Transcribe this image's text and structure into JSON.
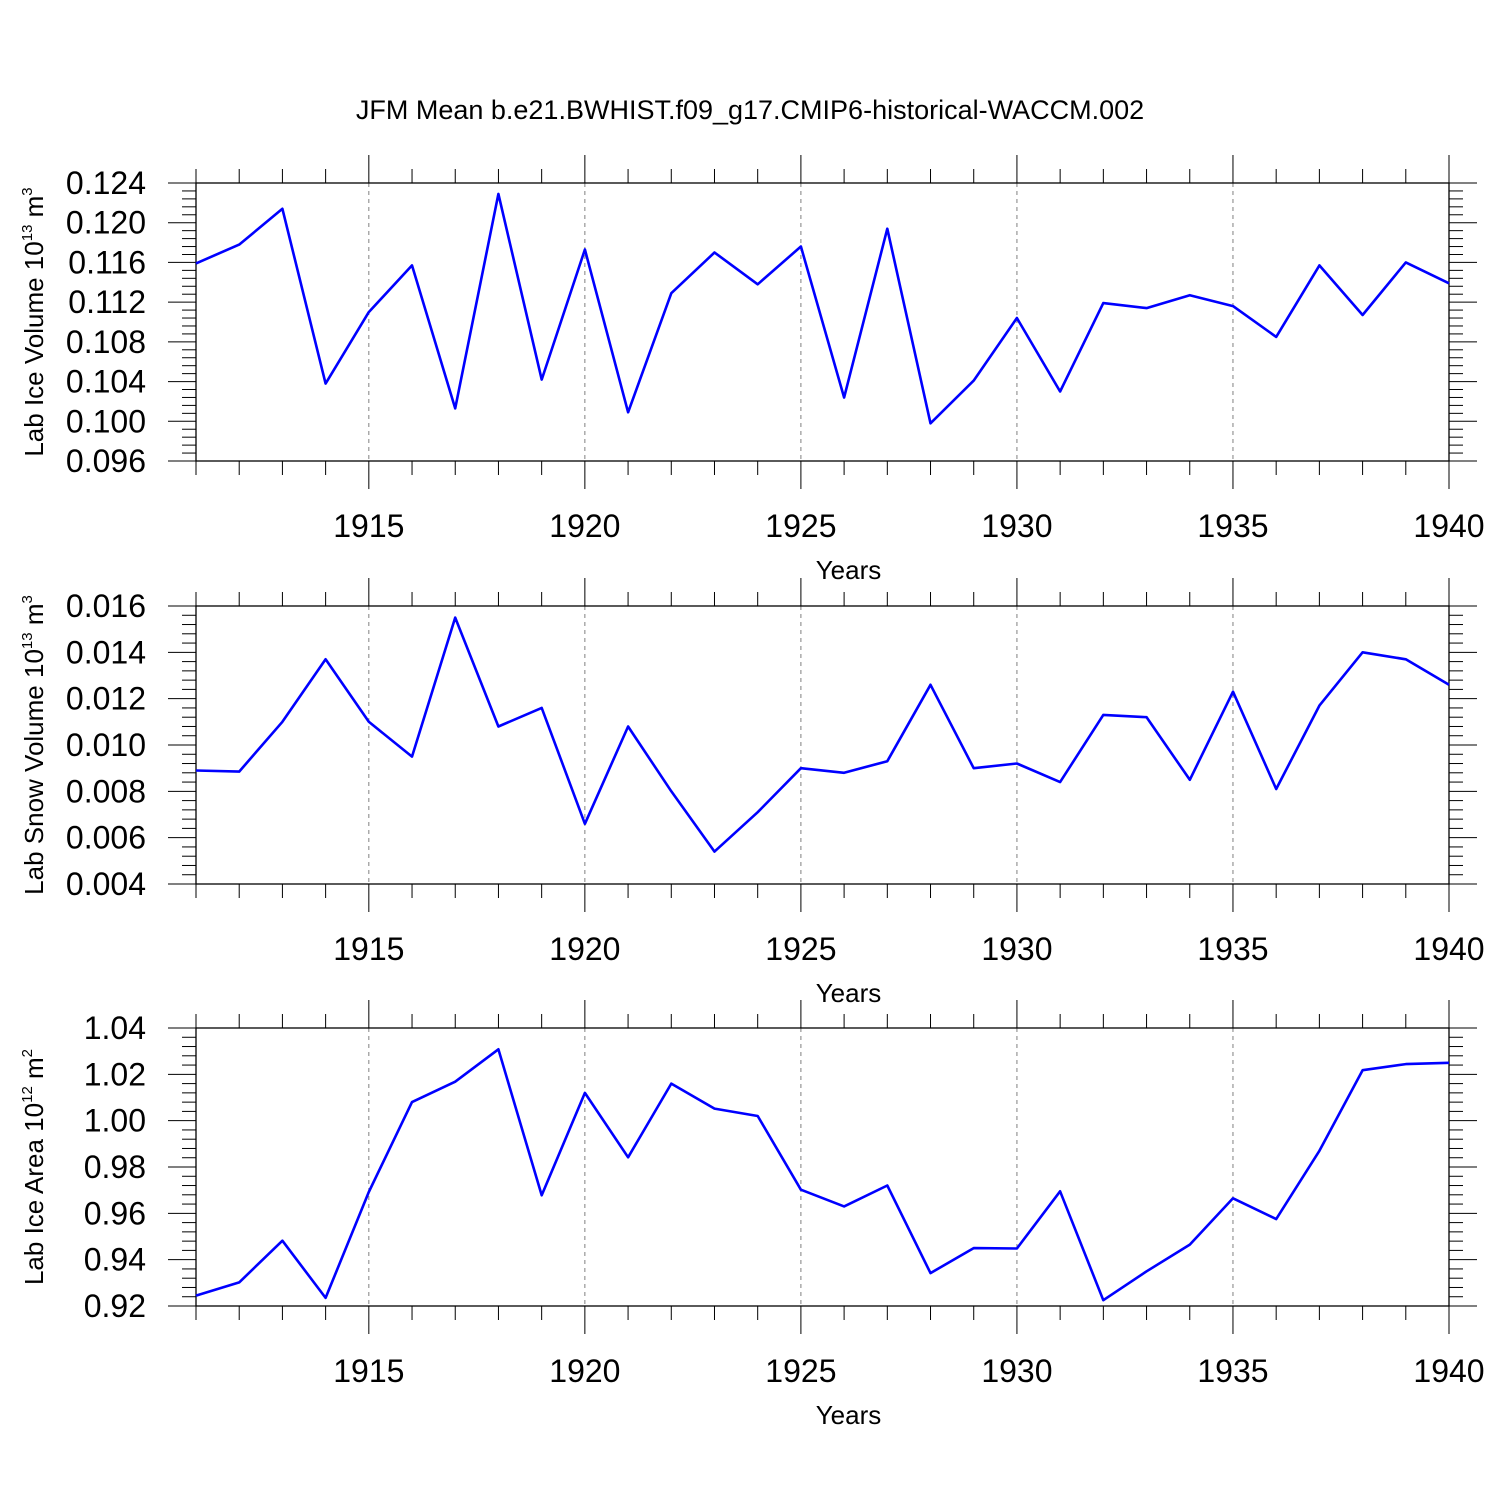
{
  "figure_title": "JFM Mean b.e21.BWHIST.f09_g17.CMIP6-historical-WACCM.002",
  "chart_data": [
    {
      "type": "line",
      "title": "",
      "xlabel": "Years",
      "ylabel": "Lab Ice Volume",
      "ylabel_base": "10",
      "ylabel_exp": "13",
      "ylabel_unit": "m",
      "ylabel_unit_exp": "3",
      "xlim": [
        1911,
        1940
      ],
      "ylim": [
        0.096,
        0.124
      ],
      "xticks": [
        "1915",
        "1920",
        "1925",
        "1930",
        "1935",
        "1940"
      ],
      "yticks": [
        "0.096",
        "0.100",
        "0.104",
        "0.108",
        "0.112",
        "0.116",
        "0.120",
        "0.124"
      ],
      "grid": "dashed vertical at major x ticks",
      "color": "#0000ff",
      "series": [
        {
          "name": "Lab Ice Volume",
          "x": [
            1911,
            1912,
            1913,
            1914,
            1915,
            1916,
            1917,
            1918,
            1919,
            1920,
            1921,
            1922,
            1923,
            1924,
            1925,
            1926,
            1927,
            1928,
            1929,
            1930,
            1931,
            1932,
            1933,
            1934,
            1935,
            1936,
            1937,
            1938,
            1939,
            1940
          ],
          "values": [
            0.1159,
            0.1178,
            0.1214,
            0.1038,
            0.111,
            0.1157,
            0.1013,
            0.1229,
            0.1042,
            0.1173,
            0.1009,
            0.1129,
            0.117,
            0.1138,
            0.1176,
            0.1024,
            0.1194,
            0.0998,
            0.1041,
            0.1104,
            0.103,
            0.1119,
            0.1114,
            0.1127,
            0.1116,
            0.1085,
            0.1157,
            0.1107,
            0.116,
            0.1139
          ]
        }
      ]
    },
    {
      "type": "line",
      "title": "",
      "xlabel": "Years",
      "ylabel": "Lab Snow Volume",
      "ylabel_base": "10",
      "ylabel_exp": "13",
      "ylabel_unit": "m",
      "ylabel_unit_exp": "3",
      "xlim": [
        1911,
        1940
      ],
      "ylim": [
        0.004,
        0.016
      ],
      "xticks": [
        "1915",
        "1920",
        "1925",
        "1930",
        "1935",
        "1940"
      ],
      "yticks": [
        "0.004",
        "0.006",
        "0.008",
        "0.010",
        "0.012",
        "0.014",
        "0.016"
      ],
      "grid": "dashed vertical at major x ticks",
      "color": "#0000ff",
      "series": [
        {
          "name": "Lab Snow Volume",
          "x": [
            1911,
            1912,
            1913,
            1914,
            1915,
            1916,
            1917,
            1918,
            1919,
            1920,
            1921,
            1922,
            1923,
            1924,
            1925,
            1926,
            1927,
            1928,
            1929,
            1930,
            1931,
            1932,
            1933,
            1934,
            1935,
            1936,
            1937,
            1938,
            1939,
            1940
          ],
          "values": [
            0.0089,
            0.00885,
            0.011,
            0.0137,
            0.011,
            0.0095,
            0.0155,
            0.0108,
            0.0116,
            0.0066,
            0.0108,
            0.008,
            0.0054,
            0.0071,
            0.009,
            0.0088,
            0.0093,
            0.0126,
            0.009,
            0.0092,
            0.0084,
            0.0113,
            0.0112,
            0.0085,
            0.0123,
            0.0081,
            0.0117,
            0.014,
            0.0137,
            0.0126
          ]
        }
      ]
    },
    {
      "type": "line",
      "title": "",
      "xlabel": "Years",
      "ylabel": "Lab Ice Area",
      "ylabel_base": "10",
      "ylabel_exp": "12",
      "ylabel_unit": "m",
      "ylabel_unit_exp": "2",
      "xlim": [
        1911,
        1940
      ],
      "ylim": [
        0.92,
        1.04
      ],
      "xticks": [
        "1915",
        "1920",
        "1925",
        "1930",
        "1935",
        "1940"
      ],
      "yticks": [
        "0.92",
        "0.94",
        "0.96",
        "0.98",
        "1.00",
        "1.02",
        "1.04"
      ],
      "grid": "dashed vertical at major x ticks",
      "color": "#0000ff",
      "series": [
        {
          "name": "Lab Ice Area",
          "x": [
            1911,
            1912,
            1913,
            1914,
            1915,
            1916,
            1917,
            1918,
            1919,
            1920,
            1921,
            1922,
            1923,
            1924,
            1925,
            1926,
            1927,
            1928,
            1929,
            1930,
            1931,
            1932,
            1933,
            1934,
            1935,
            1936,
            1937,
            1938,
            1939,
            1940
          ],
          "values": [
            0.9245,
            0.9302,
            0.9482,
            0.9235,
            0.9692,
            1.008,
            1.0168,
            1.0308,
            0.9678,
            1.012,
            0.9842,
            1.016,
            1.0052,
            1.002,
            0.9702,
            0.963,
            0.972,
            0.9342,
            0.945,
            0.9448,
            0.9695,
            0.9225,
            0.935,
            0.9465,
            0.9665,
            0.9575,
            0.987,
            1.0218,
            1.0244,
            1.025
          ]
        }
      ]
    }
  ]
}
